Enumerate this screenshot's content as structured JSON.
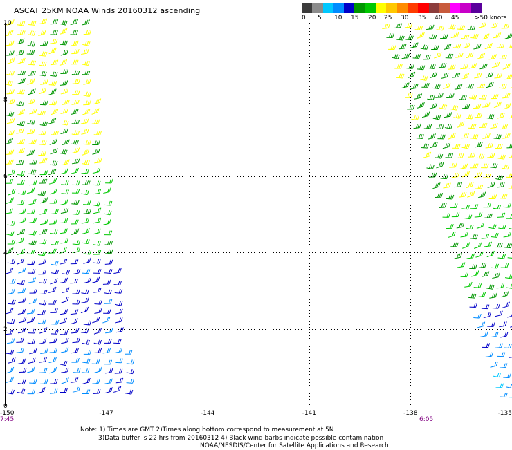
{
  "title": "ASCAT 25KM NOAA Winds 20160312 ascending",
  "color_scale": {
    "colors": [
      "#3c3c3c",
      "#8c8c8c",
      "#00c8ff",
      "#008cff",
      "#0000c8",
      "#009600",
      "#00c800",
      "#ffff00",
      "#ffc800",
      "#ff8c00",
      "#ff3c00",
      "#ff0000",
      "#8c3c3c",
      "#c85a3c",
      "#ff00ff",
      "#c800c8",
      "#5a009b"
    ],
    "labels": [
      "0",
      "5",
      "10",
      "15",
      "20",
      "25",
      "30",
      "35",
      "40",
      "45",
      ">50 knots"
    ]
  },
  "map": {
    "lon_min": -150,
    "lon_max": -135,
    "lat_min": 0,
    "lat_max": 10,
    "x_ticks": [
      "-150",
      "-147",
      "-144",
      "-141",
      "-138",
      "-135"
    ],
    "y_ticks": [
      "10",
      "8",
      "6",
      "4",
      "2",
      "0"
    ],
    "gridlines": true,
    "left_swath_time": "7:45",
    "right_swath_time": "6:05",
    "time_label_color": "#800080",
    "wind_colors": {
      "dark_blue": "#0000c8",
      "blue": "#008cff",
      "light_blue": "#00c8ff",
      "green": "#00c800",
      "dark_green": "#009600",
      "yellow": "#ffff00"
    }
  },
  "notes": {
    "line1": "Note: 1) Times are GMT 2)Times along bottom correspond to measurement at 5N",
    "line2": "3)Data buffer is 22 hrs from 20160312 4) Black wind barbs indicate possible contamination",
    "line3": "NOAA/NESDIS/Center for Satellite Applications and Research"
  }
}
